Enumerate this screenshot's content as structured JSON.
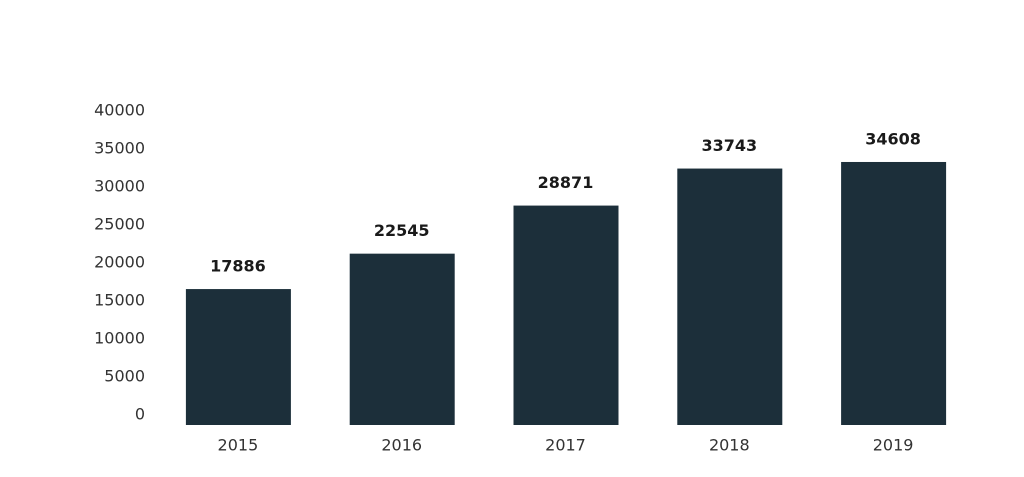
{
  "chart_data": {
    "type": "bar",
    "categories": [
      "2015",
      "2016",
      "2017",
      "2018",
      "2019"
    ],
    "values": [
      17886,
      22545,
      28871,
      33743,
      34608
    ],
    "color": "#1c2f3a",
    "ylim": [
      0,
      40000
    ],
    "yticks": [
      0,
      5000,
      10000,
      15000,
      20000,
      25000,
      30000,
      35000,
      40000
    ]
  }
}
